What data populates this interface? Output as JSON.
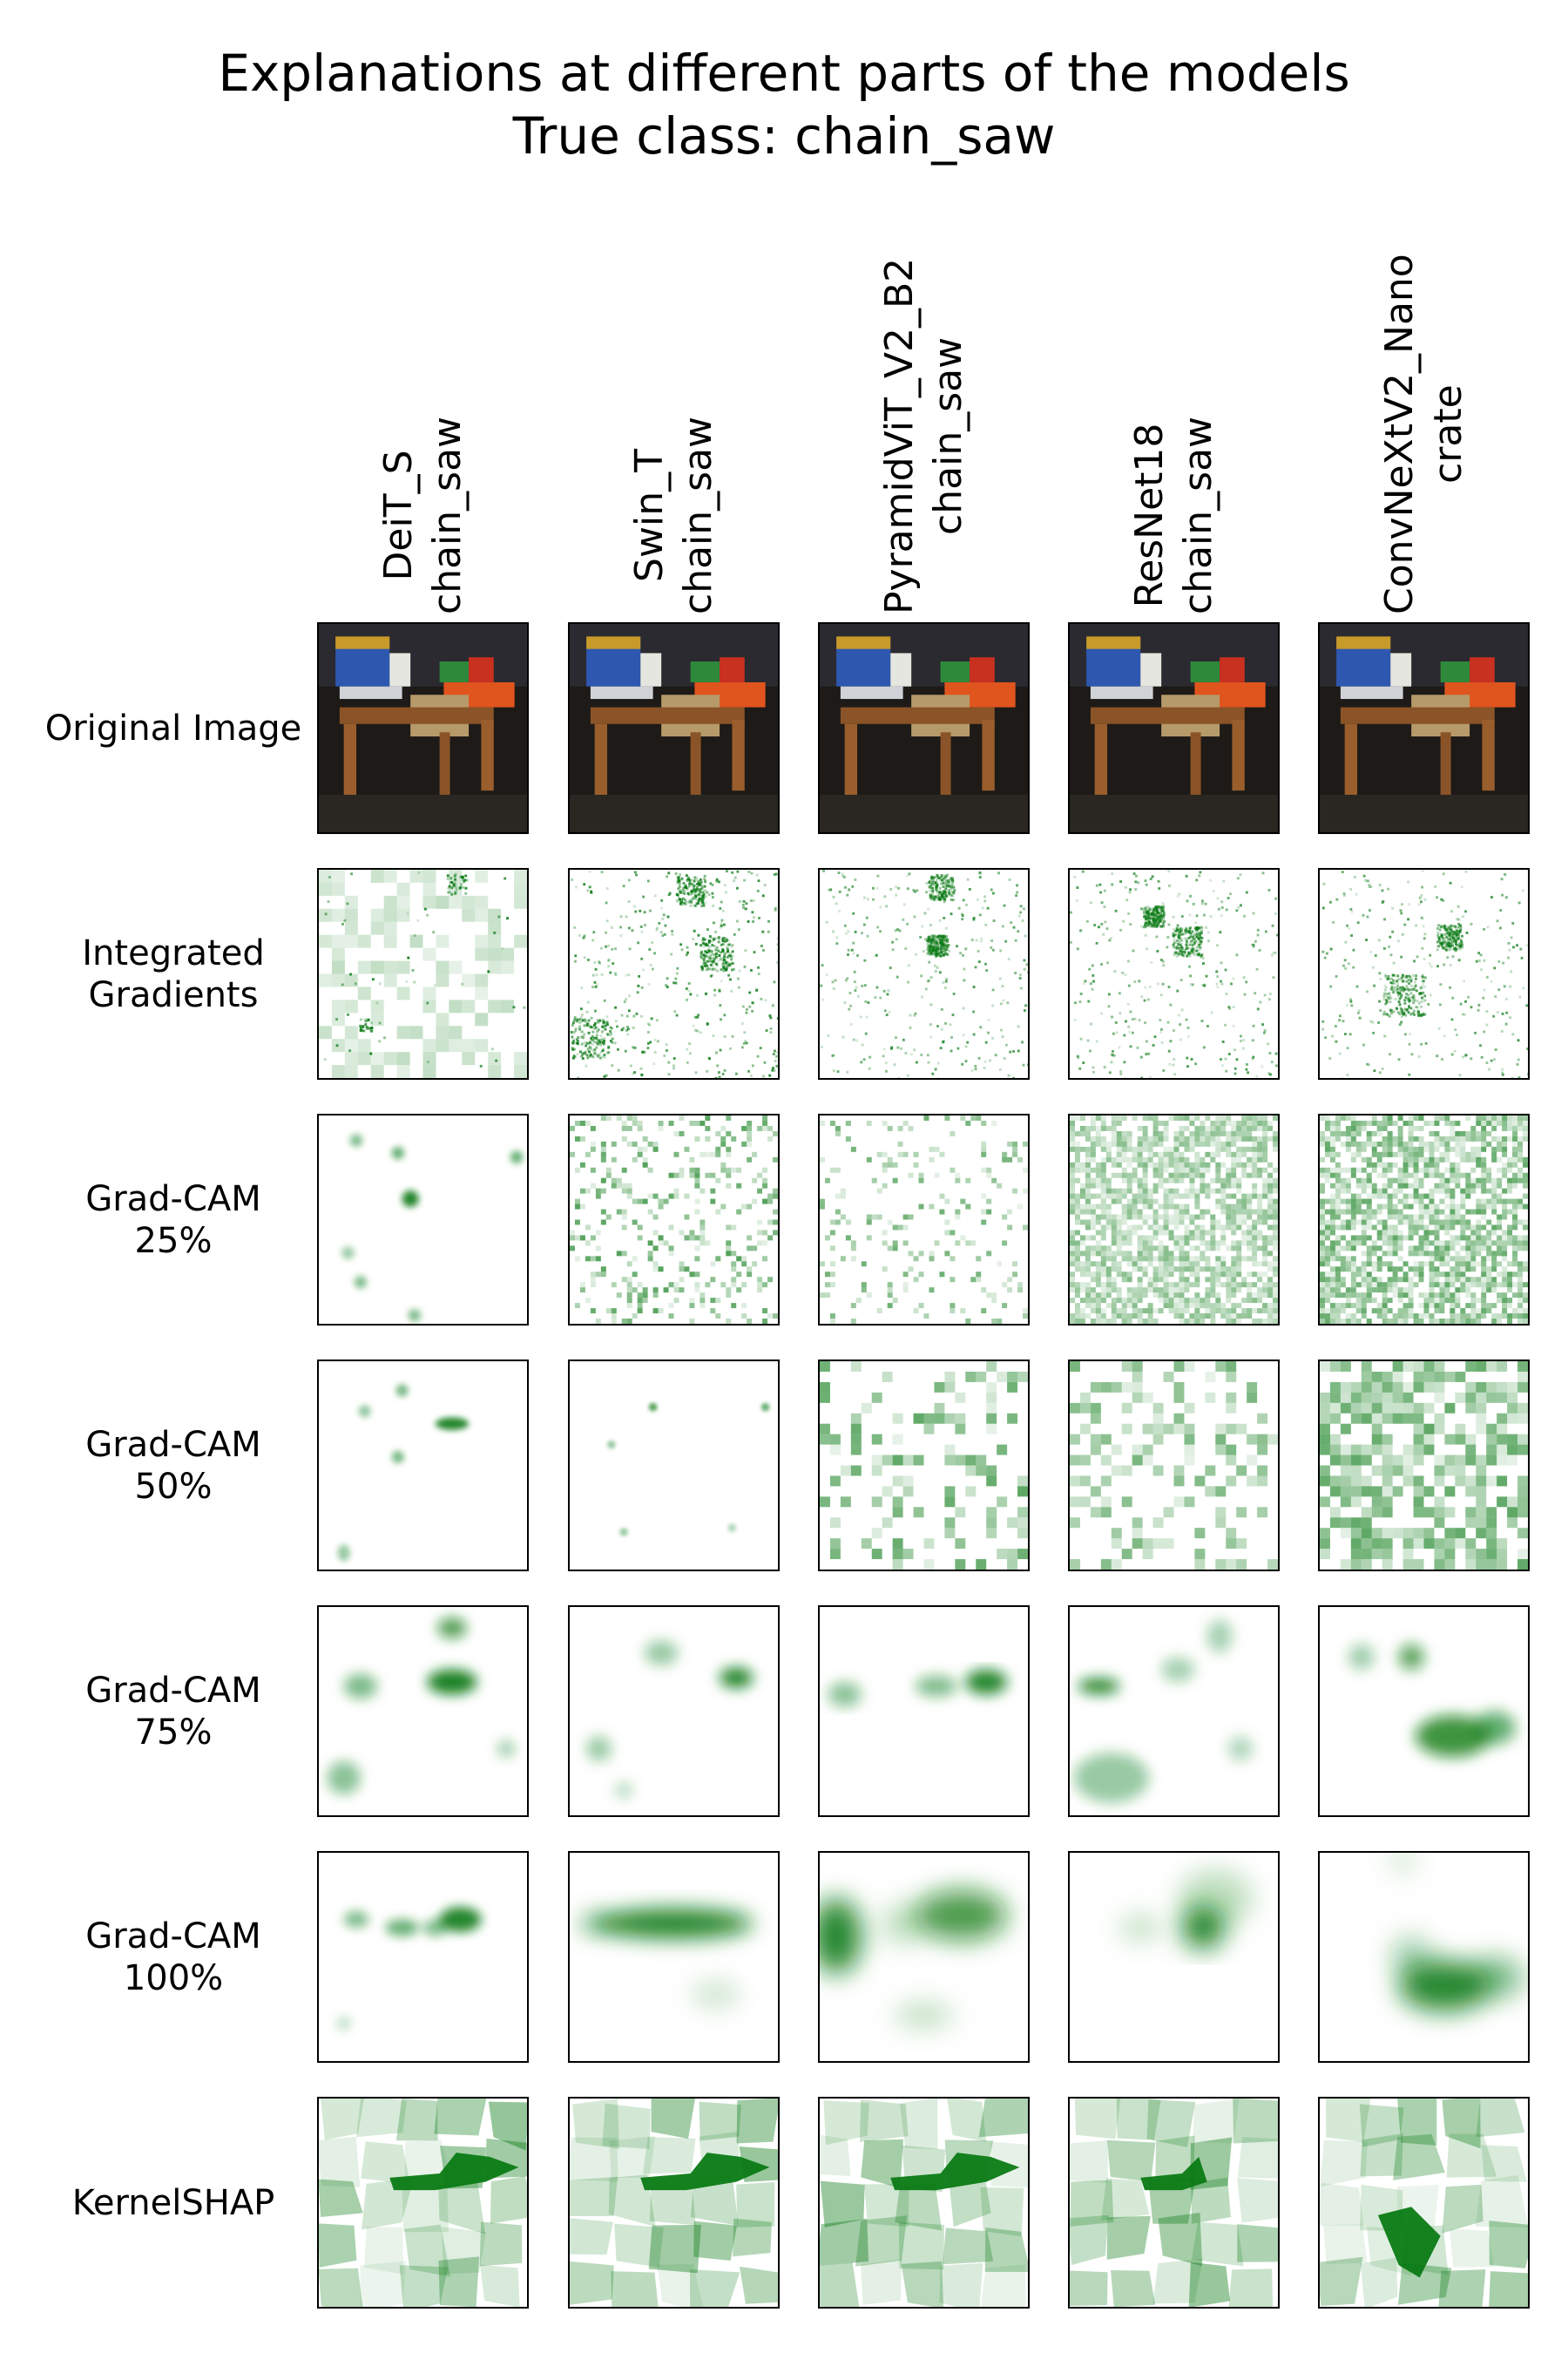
{
  "figure": {
    "title_line1": "Explanations at different parts of the models",
    "title_line2": "True class: chain_saw"
  },
  "colors": {
    "heat": "#0a7a14",
    "border": "#000000"
  },
  "columns": [
    {
      "model": "DeiT_S",
      "prediction": "chain_saw"
    },
    {
      "model": "Swin_T",
      "prediction": "chain_saw"
    },
    {
      "model": "PyramidViT_V2_B2",
      "prediction": "chain_saw"
    },
    {
      "model": "ResNet18",
      "prediction": "chain_saw"
    },
    {
      "model": "ConvNeXtV2_Nano",
      "prediction": "crate"
    }
  ],
  "rows": [
    {
      "line1": "Original Image",
      "line2": ""
    },
    {
      "line1": "Integrated",
      "line2": "Gradients"
    },
    {
      "line1": "Grad-CAM",
      "line2": "25%"
    },
    {
      "line1": "Grad-CAM",
      "line2": "50%"
    },
    {
      "line1": "Grad-CAM",
      "line2": "75%"
    },
    {
      "line1": "Grad-CAM",
      "line2": "100%"
    },
    {
      "line1": "KernelSHAP",
      "line2": ""
    }
  ]
}
